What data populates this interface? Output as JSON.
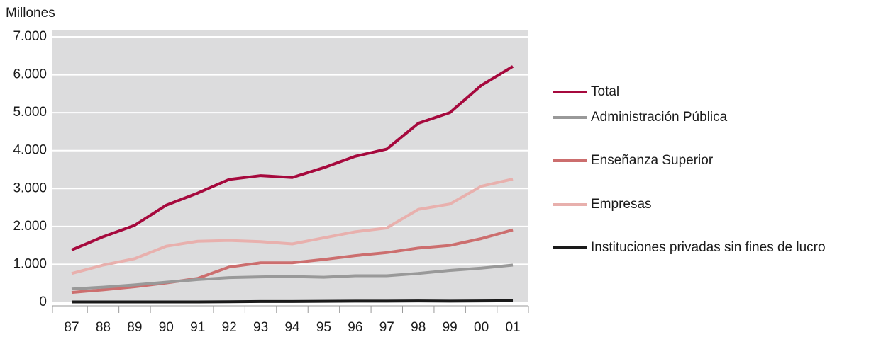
{
  "chart_data": {
    "type": "line",
    "y_axis_label": "Millones",
    "categories": [
      "87",
      "88",
      "89",
      "90",
      "91",
      "92",
      "93",
      "94",
      "95",
      "96",
      "97",
      "98",
      "99",
      "00",
      "01"
    ],
    "series": [
      {
        "name": "Total",
        "color": "#a6093d",
        "values": [
          1380,
          1730,
          2030,
          2560,
          2880,
          3240,
          3340,
          3290,
          3550,
          3850,
          4040,
          4720,
          5000,
          5720,
          6220
        ]
      },
      {
        "name": "Administración Pública",
        "color": "#999999",
        "values": [
          350,
          400,
          460,
          530,
          600,
          650,
          670,
          680,
          660,
          700,
          700,
          760,
          840,
          900,
          980
        ]
      },
      {
        "name": "Enseñanza Superior",
        "color": "#cc6e6e",
        "values": [
          260,
          330,
          410,
          510,
          630,
          930,
          1040,
          1040,
          1130,
          1230,
          1310,
          1430,
          1500,
          1680,
          1910
        ]
      },
      {
        "name": "Empresas",
        "color": "#e8b0ad",
        "values": [
          760,
          980,
          1150,
          1480,
          1610,
          1630,
          1600,
          1540,
          1700,
          1860,
          1960,
          2450,
          2590,
          3060,
          3250
        ]
      },
      {
        "name": "Instituciones privadas sin fines de lucro",
        "color": "#1a1a1a",
        "values": [
          10,
          10,
          10,
          10,
          10,
          15,
          20,
          20,
          25,
          30,
          30,
          35,
          30,
          35,
          40
        ]
      }
    ],
    "ylim": [
      0,
      7000
    ],
    "yticks": [
      0,
      {
        "value": 1000,
        "label": "1.000"
      },
      {
        "value": 2000,
        "label": "2.000"
      },
      {
        "value": 3000,
        "label": "3.000"
      },
      {
        "value": 4000,
        "label": "4.000"
      },
      {
        "value": 5000,
        "label": "5.000"
      },
      {
        "value": 6000,
        "label": "6.000"
      },
      {
        "value": 7000,
        "label": "7.000"
      }
    ],
    "grid": true
  }
}
